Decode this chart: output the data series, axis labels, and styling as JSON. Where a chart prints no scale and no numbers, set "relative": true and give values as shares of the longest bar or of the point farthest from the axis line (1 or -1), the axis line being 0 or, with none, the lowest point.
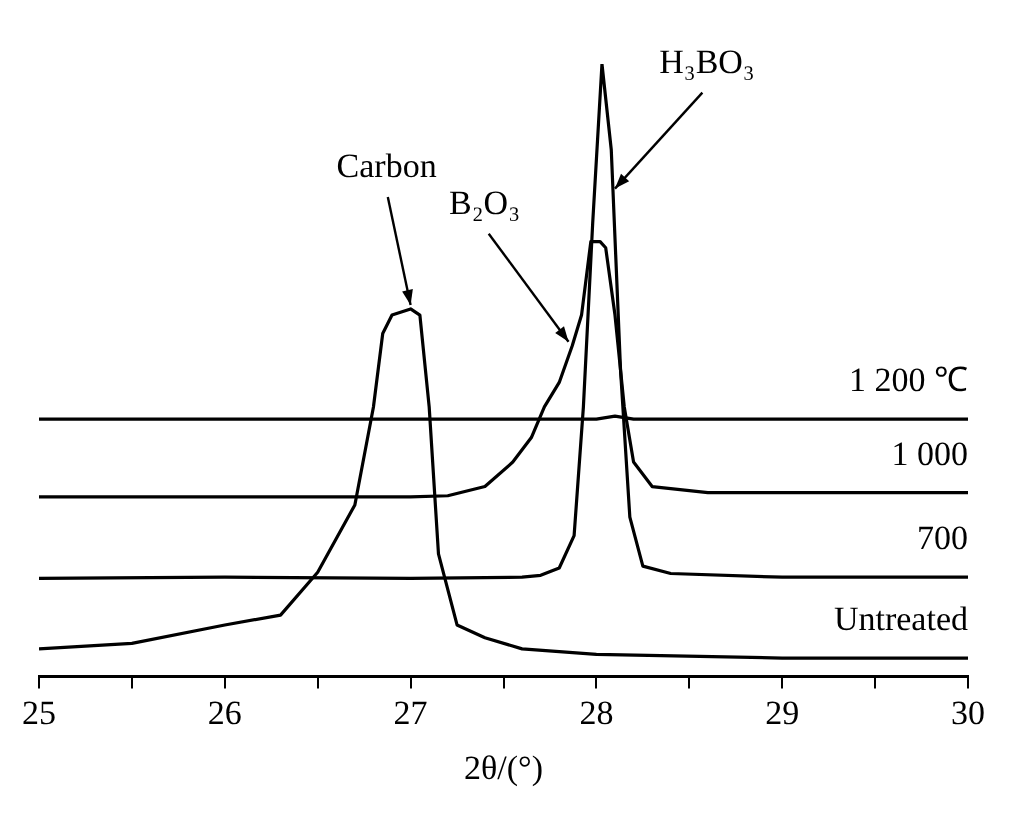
{
  "chart_data": {
    "type": "line",
    "relative": true,
    "xlabel": "2θ/(°)",
    "xlim": [
      25,
      30
    ],
    "xticks": [
      25,
      {
        "value": 25.5,
        "label": null
      },
      26,
      {
        "value": 26.5,
        "label": null
      },
      27,
      {
        "value": 27.5,
        "label": null
      },
      28,
      {
        "value": 28.5,
        "label": null
      },
      29,
      {
        "value": 29.5,
        "label": null
      },
      30
    ],
    "grid": false,
    "legend": false,
    "marker": "none",
    "line_style": "solid",
    "series": [
      {
        "name": "Untreated",
        "color": "#000000",
        "x": [
          25,
          25.5,
          26,
          26.3,
          26.5,
          26.7,
          26.8,
          26.85,
          26.9,
          27.0,
          27.05,
          27.1,
          27.15,
          27.25,
          27.4,
          27.6,
          28,
          29,
          30
        ],
        "values": [
          0.045,
          0.054,
          0.084,
          0.1,
          0.17,
          0.28,
          0.44,
          0.56,
          0.59,
          0.6,
          0.59,
          0.44,
          0.2,
          0.084,
          0.063,
          0.045,
          0.036,
          0.03,
          0.03
        ]
      },
      {
        "name": "700",
        "color": "#000000",
        "x": [
          25,
          26,
          27,
          27.6,
          27.7,
          27.8,
          27.88,
          27.93,
          27.98,
          28.03,
          28.08,
          28.13,
          28.18,
          28.25,
          28.4,
          29,
          30
        ],
        "values": [
          0.16,
          0.162,
          0.16,
          0.162,
          0.165,
          0.177,
          0.23,
          0.44,
          0.74,
          1.0,
          0.86,
          0.5,
          0.26,
          0.18,
          0.168,
          0.162,
          0.162
        ]
      },
      {
        "name": "1 000",
        "color": "#000000",
        "x": [
          25,
          26,
          27,
          27.2,
          27.4,
          27.55,
          27.65,
          27.72,
          27.8,
          27.87,
          27.92,
          27.97,
          28.02,
          28.05,
          28.1,
          28.15,
          28.2,
          28.3,
          28.6,
          29,
          30
        ],
        "values": [
          0.293,
          0.293,
          0.293,
          0.295,
          0.31,
          0.35,
          0.39,
          0.44,
          0.48,
          0.54,
          0.59,
          0.71,
          0.71,
          0.7,
          0.59,
          0.44,
          0.35,
          0.31,
          0.3,
          0.3,
          0.3
        ]
      },
      {
        "name": "1 200 ℃",
        "color": "#000000",
        "x": [
          25,
          26,
          27,
          28,
          28.1,
          28.2,
          29,
          30
        ],
        "values": [
          0.42,
          0.42,
          0.42,
          0.42,
          0.425,
          0.42,
          0.42,
          0.42
        ]
      }
    ],
    "annotations": [
      {
        "text": "Carbon",
        "x": 27.0,
        "y": 0.6
      },
      {
        "text": "B₂O₃",
        "x": 27.85,
        "y": 0.54
      },
      {
        "text": "H₃BO₃",
        "x": 28.1,
        "y": 0.79
      }
    ]
  }
}
